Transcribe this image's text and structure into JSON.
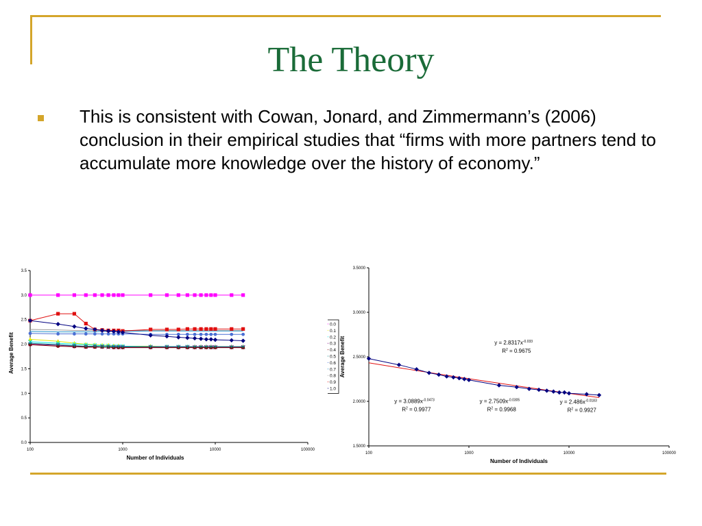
{
  "slide": {
    "title": "The Theory",
    "bullet_text": "This is consistent with Cowan, Jonard, and Zimmermann’s (2006) conclusion in their empirical studies that “firms with more partners tend to accumulate more knowledge over the history of economy.”",
    "accent_color": "#d4a52a",
    "title_color": "#1a6b38"
  },
  "chart_data": [
    {
      "type": "line",
      "xlabel": "Number of Individuals",
      "ylabel": "Average Benefit",
      "xscale": "log",
      "xlim": [
        100,
        100000
      ],
      "ylim": [
        0,
        3.5
      ],
      "x_ticks": [
        "100",
        "1000",
        "10000",
        "100000"
      ],
      "y_ticks": [
        "0.0",
        "0.5",
        "1.0",
        "1.5",
        "2.0",
        "2.5",
        "3.0",
        "3.5"
      ],
      "legend_position": "right",
      "legend": [
        "0.0",
        "0.1",
        "0.2",
        "0.3",
        "0.4",
        "0.5",
        "0.6",
        "0.7",
        "0.8",
        "0.9",
        "1.0"
      ],
      "x": [
        100,
        200,
        300,
        400,
        500,
        600,
        700,
        800,
        900,
        1000,
        2000,
        3000,
        4000,
        5000,
        6000,
        7000,
        8000,
        9000,
        10000,
        15000,
        20000
      ],
      "series": [
        {
          "name": "0.0",
          "color": "#ff00ff",
          "marker": "square",
          "values": [
            3.0,
            3.0,
            3.0,
            3.0,
            3.0,
            3.0,
            3.0,
            3.0,
            3.0,
            3.0,
            3.0,
            3.0,
            3.0,
            3.0,
            3.0,
            3.0,
            3.0,
            3.0,
            3.0,
            3.0,
            3.0
          ]
        },
        {
          "name": "0.1",
          "color": "#e6e600",
          "marker": "triangle",
          "values": [
            2.1,
            2.06,
            2.02,
            2.0,
            1.99,
            1.98,
            1.98,
            1.97,
            1.97,
            1.96,
            1.96,
            1.95,
            1.95,
            1.95,
            1.95,
            1.95,
            1.95,
            1.95,
            1.95,
            1.95,
            1.95
          ]
        },
        {
          "name": "0.2",
          "color": "#00e6e6",
          "marker": "x",
          "values": [
            2.05,
            2.02,
            2.0,
            1.99,
            1.98,
            1.97,
            1.97,
            1.96,
            1.96,
            1.96,
            1.95,
            1.95,
            1.95,
            1.95,
            1.94,
            1.94,
            1.94,
            1.94,
            1.94,
            1.94,
            1.94
          ]
        },
        {
          "name": "0.3",
          "color": "#800080",
          "marker": "x",
          "values": [
            2.0,
            1.98,
            1.96,
            1.95,
            1.95,
            1.95,
            1.94,
            1.94,
            1.94,
            1.94,
            1.94,
            1.94,
            1.94,
            1.94,
            1.94,
            1.94,
            1.94,
            1.94,
            1.94,
            1.94,
            1.94
          ]
        },
        {
          "name": "0.4",
          "color": "#800000",
          "marker": "circle",
          "values": [
            1.99,
            1.96,
            1.95,
            1.94,
            1.94,
            1.94,
            1.94,
            1.93,
            1.93,
            1.93,
            1.93,
            1.93,
            1.93,
            1.93,
            1.93,
            1.93,
            1.93,
            1.93,
            1.93,
            1.93,
            1.93
          ]
        },
        {
          "name": "0.5",
          "color": "#008080",
          "marker": "plus",
          "values": [
            2.02,
            1.99,
            1.97,
            1.96,
            1.96,
            1.95,
            1.95,
            1.95,
            1.95,
            1.95,
            1.95,
            1.95,
            1.95,
            1.95,
            1.95,
            1.95,
            1.95,
            1.95,
            1.95,
            1.95,
            1.95
          ]
        },
        {
          "name": "0.6",
          "color": "#4a6fd4",
          "marker": "circle",
          "values": [
            2.22,
            2.21,
            2.21,
            2.21,
            2.21,
            2.21,
            2.21,
            2.21,
            2.21,
            2.21,
            2.2,
            2.2,
            2.2,
            2.2,
            2.2,
            2.2,
            2.2,
            2.2,
            2.2,
            2.2,
            2.2
          ]
        },
        {
          "name": "0.7",
          "color": "#1e90c8",
          "marker": "none",
          "values": [
            2.26,
            2.25,
            2.25,
            2.25,
            2.25,
            2.26,
            2.26,
            2.26,
            2.26,
            2.26,
            2.27,
            2.27,
            2.27,
            2.27,
            2.27,
            2.27,
            2.27,
            2.27,
            2.27,
            2.27,
            2.27
          ]
        },
        {
          "name": "0.8",
          "color": "#9a9a9a",
          "marker": "none",
          "values": [
            2.3,
            2.29,
            2.28,
            2.28,
            2.28,
            2.28,
            2.28,
            2.28,
            2.28,
            2.28,
            2.28,
            2.28,
            2.28,
            2.28,
            2.28,
            2.28,
            2.28,
            2.28,
            2.28,
            2.28,
            2.28
          ]
        },
        {
          "name": "0.9",
          "color": "#e01010",
          "marker": "square",
          "values": [
            2.48,
            2.62,
            2.62,
            2.42,
            2.3,
            2.29,
            2.28,
            2.28,
            2.28,
            2.27,
            2.3,
            2.3,
            2.3,
            2.31,
            2.31,
            2.31,
            2.31,
            2.31,
            2.31,
            2.31,
            2.31
          ]
        },
        {
          "name": "1.0",
          "color": "#000080",
          "marker": "diamond",
          "values": [
            2.48,
            2.41,
            2.36,
            2.32,
            2.3,
            2.28,
            2.27,
            2.26,
            2.25,
            2.24,
            2.18,
            2.16,
            2.14,
            2.13,
            2.12,
            2.11,
            2.1,
            2.1,
            2.09,
            2.08,
            2.07
          ]
        }
      ]
    },
    {
      "type": "scatter",
      "xlabel": "Number of Individuals",
      "ylabel": "Average Benefit",
      "xscale": "log",
      "xlim": [
        100,
        100000
      ],
      "ylim": [
        1.5,
        3.5
      ],
      "x_ticks": [
        "100",
        "1000",
        "10000",
        "100000"
      ],
      "y_ticks": [
        "1.5000",
        "2.0000",
        "2.5000",
        "3.0000",
        "3.5000"
      ],
      "x": [
        100,
        200,
        300,
        400,
        500,
        600,
        700,
        800,
        900,
        1000,
        2000,
        3000,
        4000,
        5000,
        6000,
        7000,
        8000,
        9000,
        10000,
        15000,
        20000
      ],
      "series": [
        {
          "name": "",
          "color": "#000080",
          "marker": "diamond",
          "values": [
            2.48,
            2.41,
            2.36,
            2.32,
            2.3,
            2.28,
            2.27,
            2.26,
            2.25,
            2.24,
            2.18,
            2.16,
            2.14,
            2.13,
            2.12,
            2.11,
            2.1,
            2.1,
            2.09,
            2.08,
            2.07
          ]
        }
      ],
      "fits": [
        {
          "a": 2.8317,
          "b": -0.033,
          "color": "#e01010",
          "x_range": [
            100,
            20000
          ]
        }
      ],
      "annotations": [
        {
          "eq_base": "y = 2.8317x",
          "eq_exp": "-0.033",
          "r2_text": "R",
          "r2_sup": "2",
          "r2_value": " = 0.9675",
          "x_at": 1800,
          "y_at": 2.64
        },
        {
          "eq_base": "y = 3.0889x",
          "eq_exp": "-0.0473",
          "r2_text": "R",
          "r2_sup": "2",
          "r2_value": " = 0.9977",
          "x_at": 180,
          "y_at": 1.98
        },
        {
          "eq_base": "y = 2.7509x",
          "eq_exp": "-0.0305",
          "r2_text": "R",
          "r2_sup": "2",
          "r2_value": " = 0.9968",
          "x_at": 1280,
          "y_at": 1.98
        },
        {
          "eq_base": "y = 2.486x",
          "eq_exp": "-0.0183",
          "r2_text": "R",
          "r2_sup": "2",
          "r2_value": " = 0.9927",
          "x_at": 8100,
          "y_at": 1.975
        }
      ]
    }
  ]
}
